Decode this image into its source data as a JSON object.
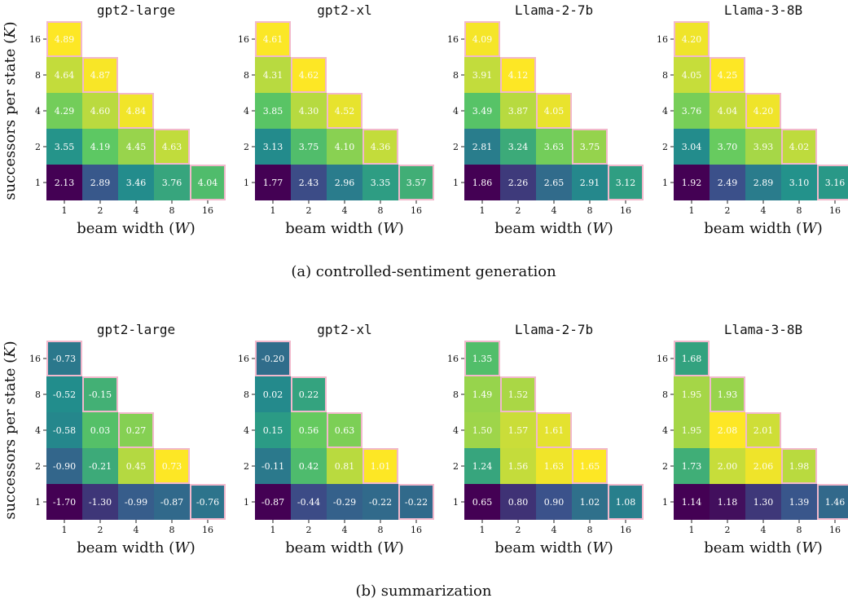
{
  "colors": {
    "cell_border": "#f2b8cc",
    "colormap": [
      "#440154",
      "#3b528b",
      "#21918c",
      "#5ec962",
      "#fde725"
    ]
  },
  "axis_labels": {
    "x_prefix": "beam width (",
    "x_var": "W",
    "x_suffix": ")",
    "y_prefix": "successors per state (",
    "y_var": "K",
    "y_suffix": ")"
  },
  "chart_data": [
    {
      "type": "heatmap",
      "group": "controlled-sentiment",
      "caption": "(a) controlled-sentiment generation",
      "x_ticks": [
        "1",
        "2",
        "4",
        "8",
        "16"
      ],
      "y_ticks": [
        "1",
        "2",
        "4",
        "8",
        "16"
      ],
      "panels": [
        {
          "title": "gpt2-large",
          "values": [
            [
              2.13,
              2.89,
              3.46,
              3.76,
              4.04
            ],
            [
              3.55,
              4.19,
              4.45,
              4.63
            ],
            [
              4.29,
              4.6,
              4.84
            ],
            [
              4.64,
              4.87
            ],
            [
              4.89
            ]
          ]
        },
        {
          "title": "gpt2-xl",
          "values": [
            [
              1.77,
              2.43,
              2.96,
              3.35,
              3.57
            ],
            [
              3.13,
              3.75,
              4.1,
              4.36
            ],
            [
              3.85,
              4.3,
              4.52
            ],
            [
              4.31,
              4.62
            ],
            [
              4.61
            ]
          ]
        },
        {
          "title": "Llama-2-7b",
          "values": [
            [
              1.86,
              2.26,
              2.65,
              2.91,
              3.12
            ],
            [
              2.81,
              3.24,
              3.63,
              3.75
            ],
            [
              3.49,
              3.87,
              4.05
            ],
            [
              3.91,
              4.12
            ],
            [
              4.09
            ]
          ]
        },
        {
          "title": "Llama-3-8B",
          "values": [
            [
              1.92,
              2.49,
              2.89,
              3.1,
              3.16
            ],
            [
              3.04,
              3.7,
              3.93,
              4.02
            ],
            [
              3.76,
              4.04,
              4.2
            ],
            [
              4.05,
              4.25
            ],
            [
              4.2
            ]
          ]
        }
      ]
    },
    {
      "type": "heatmap",
      "group": "summarization",
      "caption": "(b) summarization",
      "x_ticks": [
        "1",
        "2",
        "4",
        "8",
        "16"
      ],
      "y_ticks": [
        "1",
        "2",
        "4",
        "8",
        "16"
      ],
      "panels": [
        {
          "title": "gpt2-large",
          "values": [
            [
              -1.7,
              -1.3,
              -0.99,
              -0.87,
              -0.76
            ],
            [
              -0.9,
              -0.21,
              0.45,
              0.73
            ],
            [
              -0.58,
              0.03,
              0.27
            ],
            [
              -0.52,
              -0.15
            ],
            [
              -0.73
            ]
          ]
        },
        {
          "title": "gpt2-xl",
          "values": [
            [
              -0.87,
              -0.44,
              -0.29,
              -0.22,
              -0.22
            ],
            [
              -0.11,
              0.42,
              0.81,
              1.01
            ],
            [
              0.15,
              0.56,
              0.63
            ],
            [
              0.02,
              0.22
            ],
            [
              -0.2
            ]
          ]
        },
        {
          "title": "Llama-2-7b",
          "values": [
            [
              0.65,
              0.8,
              0.9,
              1.02,
              1.08
            ],
            [
              1.24,
              1.56,
              1.63,
              1.65
            ],
            [
              1.5,
              1.57,
              1.61
            ],
            [
              1.49,
              1.52
            ],
            [
              1.35
            ]
          ]
        },
        {
          "title": "Llama-3-8B",
          "values": [
            [
              1.14,
              1.18,
              1.3,
              1.39,
              1.46
            ],
            [
              1.73,
              2.0,
              2.06,
              1.98
            ],
            [
              1.95,
              2.08,
              2.01
            ],
            [
              1.95,
              1.93
            ],
            [
              1.68
            ]
          ]
        }
      ]
    }
  ]
}
